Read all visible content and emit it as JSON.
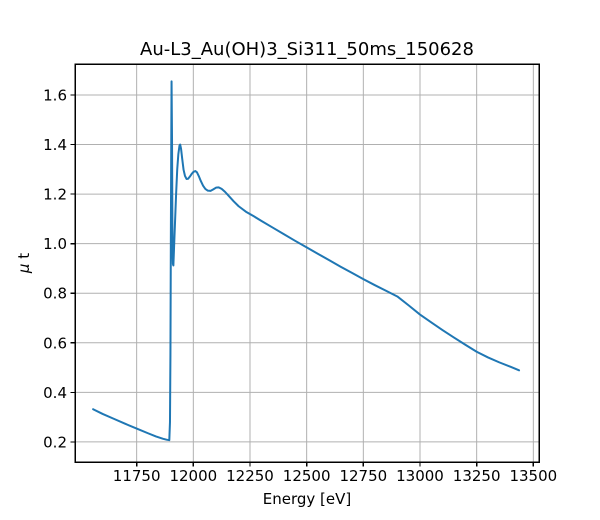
{
  "chart_data": {
    "type": "line",
    "title": "Au-L3_Au(OH)3_Si311_50ms_150628",
    "xlabel": "Energy [eV]",
    "ylabel": "μ t",
    "xlim": [
      11478,
      13525
    ],
    "ylim": [
      0.119,
      1.725
    ],
    "xticks": [
      11750,
      12000,
      12250,
      12500,
      12750,
      13000,
      13250,
      13500
    ],
    "yticks": [
      0.2,
      0.4,
      0.6,
      0.8,
      1.0,
      1.2,
      1.4,
      1.6
    ],
    "grid": true,
    "legend": false,
    "line_color": "#1f77b4",
    "grid_color": "#b0b0b0",
    "spine_color": "#000000",
    "background": "#ffffff",
    "series": [
      {
        "name": "mu_t_spectrum",
        "points": [
          [
            11558,
            0.332
          ],
          [
            11600,
            0.313
          ],
          [
            11650,
            0.293
          ],
          [
            11700,
            0.273
          ],
          [
            11750,
            0.254
          ],
          [
            11800,
            0.235
          ],
          [
            11835,
            0.222
          ],
          [
            11865,
            0.213
          ],
          [
            11882,
            0.209
          ],
          [
            11894,
            0.207
          ],
          [
            11897,
            0.28
          ],
          [
            11899,
            0.55
          ],
          [
            11901,
            1.05
          ],
          [
            11903,
            1.48
          ],
          [
            11904,
            1.655
          ],
          [
            11906,
            1.42
          ],
          [
            11908,
            1.0
          ],
          [
            11910,
            0.918
          ],
          [
            11912,
            0.912
          ],
          [
            11915,
            0.985
          ],
          [
            11919,
            1.08
          ],
          [
            11924,
            1.2
          ],
          [
            11929,
            1.3
          ],
          [
            11934,
            1.362
          ],
          [
            11939,
            1.396
          ],
          [
            11942,
            1.4
          ],
          [
            11946,
            1.382
          ],
          [
            11951,
            1.342
          ],
          [
            11957,
            1.298
          ],
          [
            11963,
            1.274
          ],
          [
            11970,
            1.261
          ],
          [
            11977,
            1.262
          ],
          [
            11985,
            1.271
          ],
          [
            11993,
            1.282
          ],
          [
            12001,
            1.29
          ],
          [
            12009,
            1.293
          ],
          [
            12016,
            1.288
          ],
          [
            12024,
            1.273
          ],
          [
            12033,
            1.253
          ],
          [
            12043,
            1.234
          ],
          [
            12053,
            1.221
          ],
          [
            12064,
            1.214
          ],
          [
            12076,
            1.213
          ],
          [
            12088,
            1.219
          ],
          [
            12100,
            1.226
          ],
          [
            12112,
            1.227
          ],
          [
            12125,
            1.221
          ],
          [
            12140,
            1.209
          ],
          [
            12158,
            1.191
          ],
          [
            12178,
            1.171
          ],
          [
            12200,
            1.151
          ],
          [
            12232,
            1.129
          ],
          [
            12266,
            1.111
          ],
          [
            12300,
            1.092
          ],
          [
            12350,
            1.065
          ],
          [
            12400,
            1.038
          ],
          [
            12450,
            1.011
          ],
          [
            12500,
            0.985
          ],
          [
            12550,
            0.959
          ],
          [
            12600,
            0.933
          ],
          [
            12650,
            0.907
          ],
          [
            12700,
            0.882
          ],
          [
            12750,
            0.857
          ],
          [
            12800,
            0.833
          ],
          [
            12850,
            0.81
          ],
          [
            12900,
            0.787
          ],
          [
            12950,
            0.751
          ],
          [
            13000,
            0.714
          ],
          [
            13050,
            0.682
          ],
          [
            13100,
            0.651
          ],
          [
            13150,
            0.621
          ],
          [
            13200,
            0.592
          ],
          [
            13250,
            0.564
          ],
          [
            13300,
            0.541
          ],
          [
            13350,
            0.521
          ],
          [
            13400,
            0.503
          ],
          [
            13437,
            0.489
          ]
        ]
      }
    ]
  }
}
